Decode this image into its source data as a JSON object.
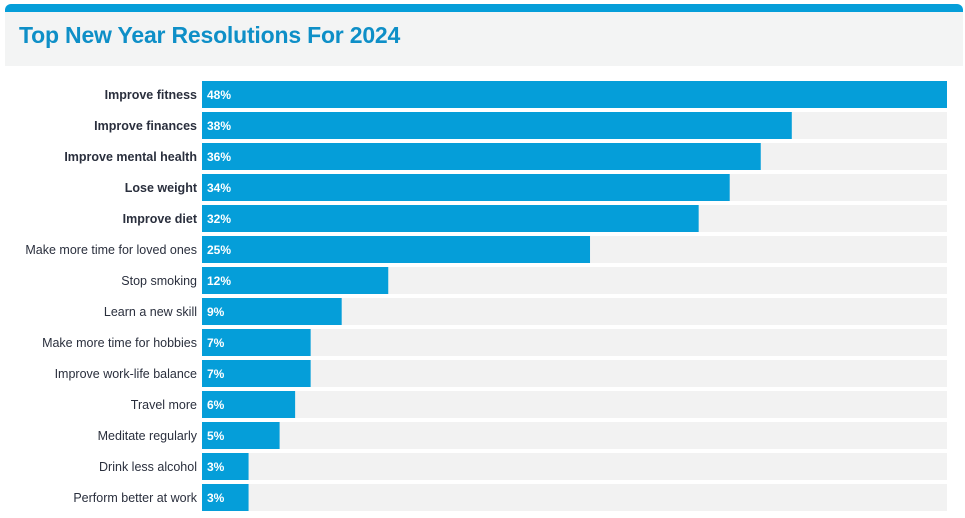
{
  "colors": {
    "accent": "#059ed9",
    "title": "#0e8fc7",
    "track": "#f2f2f2",
    "value_text": "#ffffff",
    "label_text": "#2a2f3d"
  },
  "chart_data": {
    "type": "bar",
    "orientation": "horizontal",
    "title": "Top New Year Resolutions For 2024",
    "categories": [
      "Improve fitness",
      "Improve finances",
      "Improve mental health",
      "Lose weight",
      "Improve diet",
      "Make more time for loved ones",
      "Stop smoking",
      "Learn a new skill",
      "Make more time for hobbies",
      "Improve work-life balance",
      "Travel more",
      "Meditate regularly",
      "Drink less alcohol",
      "Perform better at work"
    ],
    "values": [
      48,
      38,
      36,
      34,
      32,
      25,
      12,
      9,
      7,
      7,
      6,
      5,
      3,
      3
    ],
    "value_labels": [
      "48%",
      "38%",
      "36%",
      "34%",
      "32%",
      "25%",
      "12%",
      "9%",
      "7%",
      "7%",
      "6%",
      "5%",
      "3%",
      "3%"
    ],
    "bold_categories": [
      "Improve fitness",
      "Improve finances",
      "Improve mental health",
      "Lose weight",
      "Improve diet"
    ],
    "unit": "%",
    "xlim": [
      0,
      48
    ],
    "grid": false,
    "legend": "none"
  }
}
